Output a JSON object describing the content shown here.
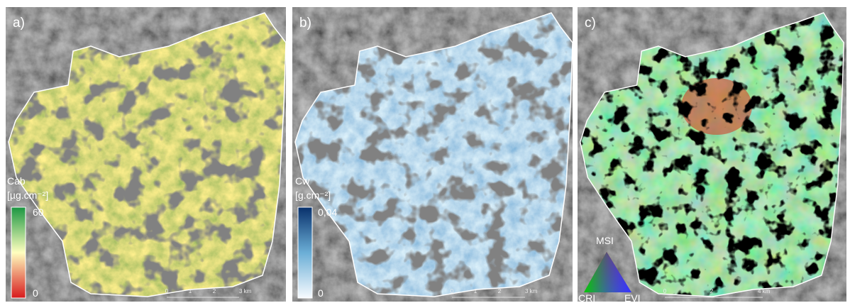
{
  "panels": [
    {
      "label": "a)",
      "legend": {
        "title": "Cab",
        "unit": "[µg.cm⁻²]",
        "max": "60",
        "min": "0"
      },
      "scale": [
        "0",
        "1",
        "2",
        "3 km"
      ]
    },
    {
      "label": "b)",
      "legend": {
        "title": "Cw",
        "unit": "[g.cm⁻²]",
        "max": "0,04",
        "min": "0"
      },
      "scale": [
        "0",
        "1",
        "2",
        "3 km"
      ]
    },
    {
      "label": "c)",
      "legend": {
        "top": "MSI",
        "left": "CRI",
        "right": "EVI"
      },
      "scale": [
        "0",
        "2",
        "4 km"
      ]
    }
  ]
}
